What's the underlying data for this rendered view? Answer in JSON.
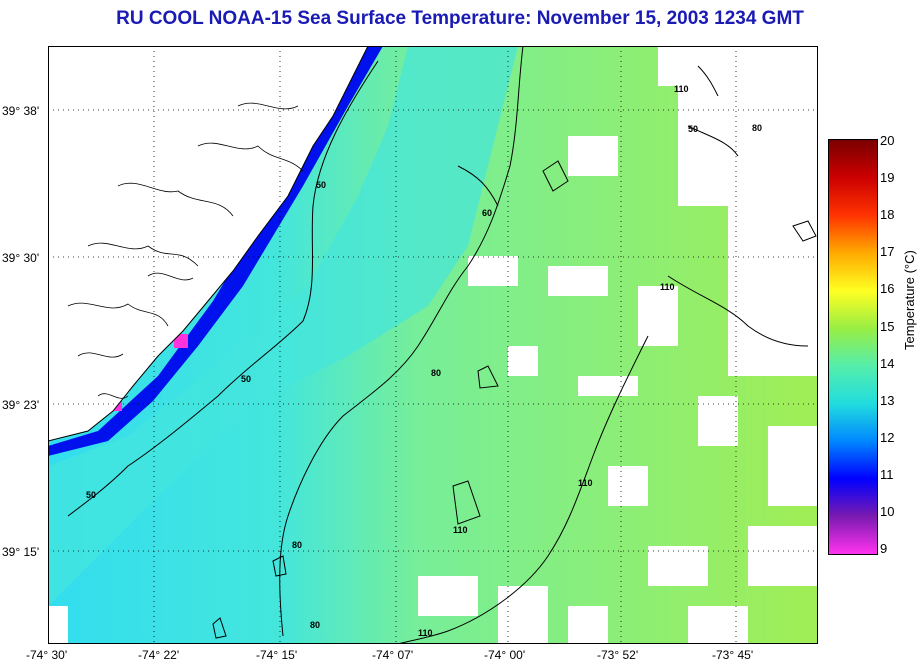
{
  "title": "RU COOL  NOAA-15  Sea Surface Temperature:  November 15, 2003 1234 GMT",
  "lat_labels": [
    "39° 38'",
    "39° 30'",
    "39° 23'",
    "39° 15'"
  ],
  "lon_labels": [
    "-74° 30'",
    "-74° 22'",
    "-74° 15'",
    "-74° 07'",
    "-74° 00'",
    "-73° 52'",
    "-73° 45'"
  ],
  "colorbar": {
    "label": "Temperature (°C)",
    "ticks": [
      "20",
      "19",
      "18",
      "17",
      "16",
      "15",
      "14",
      "13",
      "12",
      "11",
      "10",
      "9"
    ],
    "min": 9,
    "max": 20,
    "colors": [
      "#ff33ee",
      "#7a1ab0",
      "#0000ff",
      "#0088ff",
      "#22dddd",
      "#55eeaa",
      "#99ee44",
      "#ffff22",
      "#ffaa00",
      "#ff3300",
      "#cc0000",
      "#7a0000"
    ]
  },
  "contour_labels": [
    "50",
    "50",
    "50",
    "50",
    "60",
    "80",
    "80",
    "80",
    "110",
    "110",
    "110",
    "110",
    "110",
    "80"
  ],
  "colors": {
    "title": "#1a1ab4",
    "nearshore_water": "#33ddee",
    "shelf_water": "#77ee88",
    "offshore_water": "#99ee55",
    "cold_coast": "#0011ee",
    "coldest_coast": "#ff33dd",
    "land": "#ffffff",
    "gridline": "#000000"
  }
}
